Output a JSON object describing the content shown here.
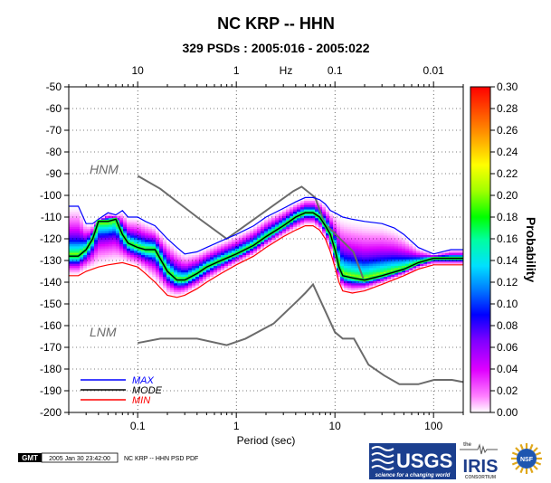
{
  "header": {
    "title": "NC KRP -- HHN",
    "subtitle": "329 PSDs : 2005:016 - 2005:022"
  },
  "footer": {
    "gmt": "GMT",
    "timestamp": "2005 Jan 30 23:42:00",
    "filename": "NC KRP -- HHN PSD PDF",
    "usgs": "USGS",
    "usgs_tagline": "science for a changing world",
    "iris_small": "the",
    "iris": "IRIS",
    "iris_sub": "CONSORTIUM",
    "nsf": "NSF"
  },
  "chart_data": {
    "type": "heatmap",
    "title": "NC KRP -- HHN",
    "subtitle": "329 PSDs : 2005:016 - 2005:022",
    "xlabel": "Period (sec)",
    "top_axis_label": "Hz",
    "ylabel": "",
    "colorbar_label": "Probability",
    "x_scale": "log",
    "xlim": [
      0.02,
      200
    ],
    "ylim": [
      -200,
      -50
    ],
    "x_ticks": [
      {
        "value": 0.1,
        "label": "0.1"
      },
      {
        "value": 1,
        "label": "1"
      },
      {
        "value": 10,
        "label": "10"
      },
      {
        "value": 100,
        "label": "100"
      }
    ],
    "top_ticks": [
      {
        "value": 0.1,
        "label": "10"
      },
      {
        "value": 1,
        "label": "1"
      },
      {
        "value": 10,
        "label": "0.1"
      },
      {
        "value": 100,
        "label": "0.01"
      }
    ],
    "y_ticks": [
      -50,
      -60,
      -70,
      -80,
      -90,
      -100,
      -110,
      -120,
      -130,
      -140,
      -150,
      -160,
      -170,
      -180,
      -190,
      -200
    ],
    "colorbar": {
      "range": [
        0,
        0.3
      ],
      "ticks": [
        "0.00",
        "0.02",
        "0.04",
        "0.06",
        "0.08",
        "0.10",
        "0.12",
        "0.14",
        "0.16",
        "0.18",
        "0.20",
        "0.22",
        "0.24",
        "0.26",
        "0.28",
        "0.30"
      ]
    },
    "series": [
      {
        "name": "MAX",
        "color": "#0000ff",
        "points": [
          [
            0.02,
            -105
          ],
          [
            0.025,
            -105
          ],
          [
            0.03,
            -113
          ],
          [
            0.035,
            -113
          ],
          [
            0.04,
            -111
          ],
          [
            0.05,
            -108
          ],
          [
            0.06,
            -109
          ],
          [
            0.07,
            -107
          ],
          [
            0.08,
            -110
          ],
          [
            0.1,
            -110
          ],
          [
            0.12,
            -112
          ],
          [
            0.15,
            -114
          ],
          [
            0.2,
            -120
          ],
          [
            0.25,
            -124
          ],
          [
            0.3,
            -127
          ],
          [
            0.4,
            -126
          ],
          [
            0.5,
            -124
          ],
          [
            0.7,
            -121
          ],
          [
            1,
            -118
          ],
          [
            1.5,
            -114
          ],
          [
            2,
            -110
          ],
          [
            3,
            -106
          ],
          [
            4,
            -103
          ],
          [
            5,
            -101
          ],
          [
            6,
            -101
          ],
          [
            7,
            -102
          ],
          [
            8,
            -104
          ],
          [
            9,
            -107
          ],
          [
            10,
            -108
          ],
          [
            12,
            -110
          ],
          [
            15,
            -111
          ],
          [
            20,
            -112
          ],
          [
            30,
            -113
          ],
          [
            40,
            -115
          ],
          [
            50,
            -118
          ],
          [
            70,
            -124
          ],
          [
            100,
            -127
          ],
          [
            150,
            -125
          ],
          [
            200,
            -125
          ]
        ]
      },
      {
        "name": "MODE",
        "color": "#000000",
        "points": [
          [
            0.02,
            -128
          ],
          [
            0.025,
            -128
          ],
          [
            0.03,
            -125
          ],
          [
            0.035,
            -120
          ],
          [
            0.04,
            -112
          ],
          [
            0.05,
            -112
          ],
          [
            0.06,
            -111
          ],
          [
            0.07,
            -118
          ],
          [
            0.08,
            -122
          ],
          [
            0.1,
            -124
          ],
          [
            0.12,
            -125
          ],
          [
            0.15,
            -125
          ],
          [
            0.2,
            -135
          ],
          [
            0.25,
            -139
          ],
          [
            0.3,
            -139
          ],
          [
            0.4,
            -136
          ],
          [
            0.5,
            -133
          ],
          [
            0.7,
            -130
          ],
          [
            1,
            -127
          ],
          [
            1.5,
            -123
          ],
          [
            2,
            -119
          ],
          [
            3,
            -114
          ],
          [
            4,
            -110
          ],
          [
            5,
            -108
          ],
          [
            6,
            -108
          ],
          [
            7,
            -110
          ],
          [
            8,
            -114
          ],
          [
            9,
            -118
          ],
          [
            10,
            -125
          ],
          [
            11,
            -133
          ],
          [
            12,
            -137
          ],
          [
            15,
            -138
          ],
          [
            20,
            -139
          ],
          [
            30,
            -137
          ],
          [
            50,
            -134
          ],
          [
            70,
            -131
          ],
          [
            100,
            -129
          ],
          [
            150,
            -129
          ],
          [
            200,
            -129
          ]
        ]
      },
      {
        "name": "MIN",
        "color": "#ff0000",
        "points": [
          [
            0.02,
            -137
          ],
          [
            0.025,
            -137
          ],
          [
            0.03,
            -135
          ],
          [
            0.04,
            -133
          ],
          [
            0.05,
            -132
          ],
          [
            0.07,
            -131
          ],
          [
            0.1,
            -133
          ],
          [
            0.12,
            -136
          ],
          [
            0.15,
            -140
          ],
          [
            0.2,
            -146
          ],
          [
            0.25,
            -147
          ],
          [
            0.3,
            -146
          ],
          [
            0.4,
            -143
          ],
          [
            0.5,
            -140
          ],
          [
            0.7,
            -136
          ],
          [
            1,
            -132
          ],
          [
            1.5,
            -128
          ],
          [
            2,
            -124
          ],
          [
            3,
            -119
          ],
          [
            4,
            -116
          ],
          [
            5,
            -114
          ],
          [
            6,
            -114
          ],
          [
            7,
            -116
          ],
          [
            8,
            -120
          ],
          [
            9,
            -126
          ],
          [
            10,
            -133
          ],
          [
            11,
            -140
          ],
          [
            12,
            -144
          ],
          [
            15,
            -145
          ],
          [
            20,
            -144
          ],
          [
            30,
            -141
          ],
          [
            50,
            -137
          ],
          [
            70,
            -134
          ],
          [
            100,
            -132
          ],
          [
            150,
            -132
          ],
          [
            200,
            -132
          ]
        ]
      }
    ],
    "reference_curves": [
      {
        "name": "HNM",
        "color": "#6b6b6b",
        "points": [
          [
            0.1,
            -91
          ],
          [
            0.17,
            -97
          ],
          [
            0.4,
            -110
          ],
          [
            0.8,
            -120
          ],
          [
            3.8,
            -98
          ],
          [
            4.6,
            -96
          ],
          [
            6.3,
            -101
          ],
          [
            7.9,
            -113
          ],
          [
            15.4,
            -126
          ],
          [
            20,
            -140
          ]
        ]
      },
      {
        "name": "LNM",
        "color": "#6b6b6b",
        "points": [
          [
            0.1,
            -168
          ],
          [
            0.17,
            -166
          ],
          [
            0.4,
            -166
          ],
          [
            0.8,
            -169
          ],
          [
            1.24,
            -166
          ],
          [
            2.4,
            -159
          ],
          [
            4.3,
            -148
          ],
          [
            5,
            -145
          ],
          [
            6,
            -141
          ],
          [
            10,
            -163
          ],
          [
            12,
            -166
          ],
          [
            15.6,
            -166
          ],
          [
            21.9,
            -178
          ],
          [
            31.6,
            -183
          ],
          [
            45,
            -187
          ],
          [
            70,
            -187
          ],
          [
            101,
            -185
          ],
          [
            154,
            -185
          ],
          [
            200,
            -186
          ]
        ]
      }
    ],
    "legend": {
      "position": "bottom-left",
      "entries": [
        {
          "label": "MAX",
          "color": "#0000ff"
        },
        {
          "label": "MODE",
          "color": "#000000"
        },
        {
          "label": "MIN",
          "color": "#ff0000"
        }
      ]
    },
    "grid": true
  }
}
